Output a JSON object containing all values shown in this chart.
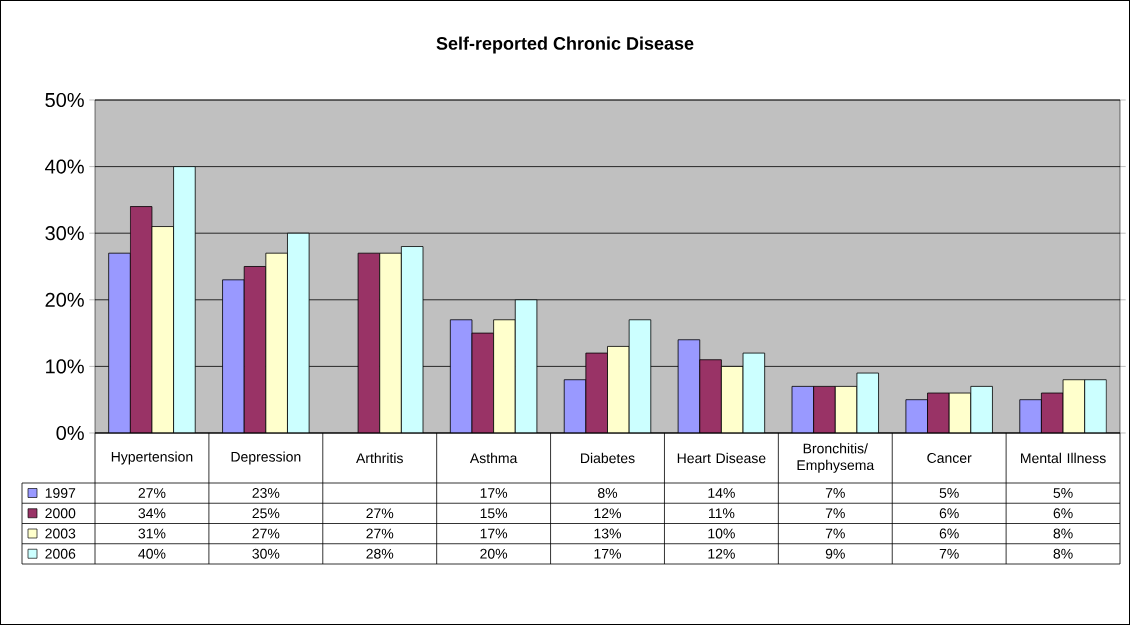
{
  "chart_data": {
    "type": "bar",
    "title": "Self-reported Chronic Disease",
    "categories": [
      "Hypertension",
      "Depression",
      "Arthritis",
      "Asthma",
      "Diabetes",
      "Heart Disease",
      "Bronchitis/ Emphysema",
      "Cancer",
      "Mental Illness"
    ],
    "series": [
      {
        "name": "1997",
        "color": "#9999ff",
        "values": [
          27,
          23,
          null,
          17,
          8,
          14,
          7,
          5,
          5
        ],
        "value_labels": [
          "27%",
          "23%",
          null,
          "17%",
          "8%",
          "14%",
          "7%",
          "5%",
          "5%"
        ]
      },
      {
        "name": "2000",
        "color": "#993366",
        "values": [
          34,
          25,
          27,
          15,
          12,
          11,
          7,
          6,
          6
        ],
        "value_labels": [
          "34%",
          "25%",
          "27%",
          "15%",
          "12%",
          "11%",
          "7%",
          "6%",
          "6%"
        ]
      },
      {
        "name": "2003",
        "color": "#ffffcc",
        "values": [
          31,
          27,
          27,
          17,
          13,
          10,
          7,
          6,
          8
        ],
        "value_labels": [
          "31%",
          "27%",
          "27%",
          "17%",
          "13%",
          "10%",
          "7%",
          "6%",
          "8%"
        ]
      },
      {
        "name": "2006",
        "color": "#ccffff",
        "values": [
          40,
          30,
          28,
          20,
          17,
          12,
          9,
          7,
          8
        ],
        "value_labels": [
          "40%",
          "30%",
          "28%",
          "20%",
          "17%",
          "12%",
          "9%",
          "7%",
          "8%"
        ]
      }
    ],
    "ylim": [
      0,
      50
    ],
    "yticks": [
      {
        "value": 0,
        "label": "0%"
      },
      {
        "value": 10,
        "label": "10%"
      },
      {
        "value": 20,
        "label": "20%"
      },
      {
        "value": 30,
        "label": "30%"
      },
      {
        "value": 40,
        "label": "40%"
      },
      {
        "value": 50,
        "label": "50%"
      }
    ],
    "grid": "y",
    "legend": "bottom"
  }
}
